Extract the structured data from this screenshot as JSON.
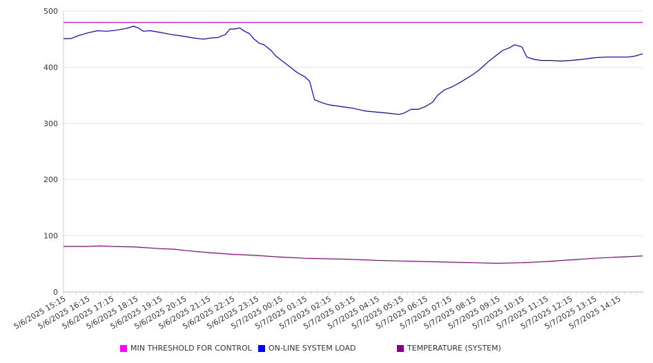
{
  "chart_data": {
    "type": "line",
    "ylim": [
      0,
      500
    ],
    "y_ticks": [
      0,
      100,
      200,
      300,
      400,
      500
    ],
    "x_tick_labels": [
      "5/6/2025 15:15",
      "5/6/2025 16:15",
      "5/6/2025 17:15",
      "5/6/2025 18:15",
      "5/6/2025 19:15",
      "5/6/2025 20:15",
      "5/6/2025 21:15",
      "5/6/2025 22:15",
      "5/6/2025 23:15",
      "5/7/2025 00:15",
      "5/7/2025 01:15",
      "5/7/2025 02:15",
      "5/7/2025 03:15",
      "5/7/2025 04:15",
      "5/7/2025 05:15",
      "5/7/2025 06:15",
      "5/7/2025 07:15",
      "5/7/2025 08:15",
      "5/7/2025 09:15",
      "5/7/2025 10:15",
      "5/7/2025 11:15",
      "5/7/2025 12:15",
      "5/7/2025 13:15",
      "5/7/2025 14:15"
    ],
    "x_range_hours": [
      0,
      24
    ],
    "grid": "horizontal",
    "legend_position": "bottom",
    "series": [
      {
        "name": "MIN THRESHOLD FOR CONTROL",
        "color": "#cc00cc",
        "points": [
          [
            0,
            480
          ],
          [
            24,
            480
          ]
        ]
      },
      {
        "name": "ON-LINE SYSTEM LOAD",
        "color": "#0000cc",
        "points": [
          [
            0,
            451
          ],
          [
            0.3,
            451
          ],
          [
            0.6,
            456
          ],
          [
            1,
            461
          ],
          [
            1.4,
            465
          ],
          [
            1.8,
            464
          ],
          [
            2.2,
            466
          ],
          [
            2.6,
            469
          ],
          [
            2.9,
            473
          ],
          [
            3.1,
            470
          ],
          [
            3.3,
            464
          ],
          [
            3.6,
            465
          ],
          [
            4,
            462
          ],
          [
            4.5,
            458
          ],
          [
            5,
            455
          ],
          [
            5.4,
            452
          ],
          [
            5.8,
            450
          ],
          [
            6.1,
            452
          ],
          [
            6.4,
            453
          ],
          [
            6.7,
            458
          ],
          [
            6.9,
            468
          ],
          [
            7.1,
            468
          ],
          [
            7.3,
            470
          ],
          [
            7.5,
            464
          ],
          [
            7.7,
            460
          ],
          [
            7.9,
            450
          ],
          [
            8.1,
            443
          ],
          [
            8.3,
            440
          ],
          [
            8.6,
            430
          ],
          [
            8.8,
            420
          ],
          [
            9.1,
            410
          ],
          [
            9.4,
            400
          ],
          [
            9.7,
            390
          ],
          [
            10,
            383
          ],
          [
            10.2,
            375
          ],
          [
            10.4,
            342
          ],
          [
            10.7,
            337
          ],
          [
            11,
            333
          ],
          [
            11.5,
            330
          ],
          [
            12,
            327
          ],
          [
            12.5,
            322
          ],
          [
            13,
            320
          ],
          [
            13.5,
            318
          ],
          [
            13.9,
            316
          ],
          [
            14.1,
            318
          ],
          [
            14.4,
            325
          ],
          [
            14.7,
            325
          ],
          [
            15,
            330
          ],
          [
            15.3,
            338
          ],
          [
            15.5,
            350
          ],
          [
            15.8,
            360
          ],
          [
            16.1,
            365
          ],
          [
            16.4,
            372
          ],
          [
            16.7,
            380
          ],
          [
            17,
            388
          ],
          [
            17.3,
            398
          ],
          [
            17.6,
            410
          ],
          [
            17.9,
            420
          ],
          [
            18.2,
            430
          ],
          [
            18.5,
            435
          ],
          [
            18.7,
            440
          ],
          [
            19,
            436
          ],
          [
            19.2,
            418
          ],
          [
            19.5,
            414
          ],
          [
            19.8,
            412
          ],
          [
            20.2,
            412
          ],
          [
            20.6,
            411
          ],
          [
            21,
            412
          ],
          [
            21.5,
            414
          ],
          [
            22,
            417
          ],
          [
            22.5,
            418
          ],
          [
            23,
            418
          ],
          [
            23.4,
            418
          ],
          [
            23.7,
            420
          ],
          [
            24,
            424
          ]
        ]
      },
      {
        "name": "TEMPERATURE (SYSTEM)",
        "color": "#880088",
        "points": [
          [
            0,
            81
          ],
          [
            1,
            81
          ],
          [
            1.5,
            82
          ],
          [
            2,
            81
          ],
          [
            3,
            80
          ],
          [
            4,
            77
          ],
          [
            4.6,
            76
          ],
          [
            5,
            74
          ],
          [
            6,
            70
          ],
          [
            7,
            67
          ],
          [
            8,
            65
          ],
          [
            9,
            62
          ],
          [
            10,
            60
          ],
          [
            11,
            59
          ],
          [
            12,
            58
          ],
          [
            13,
            56
          ],
          [
            14,
            55
          ],
          [
            15,
            54
          ],
          [
            16,
            53
          ],
          [
            17,
            52
          ],
          [
            18,
            51
          ],
          [
            19,
            52
          ],
          [
            20,
            54
          ],
          [
            21,
            57
          ],
          [
            22,
            60
          ],
          [
            23,
            62
          ],
          [
            24,
            64
          ]
        ]
      }
    ]
  }
}
